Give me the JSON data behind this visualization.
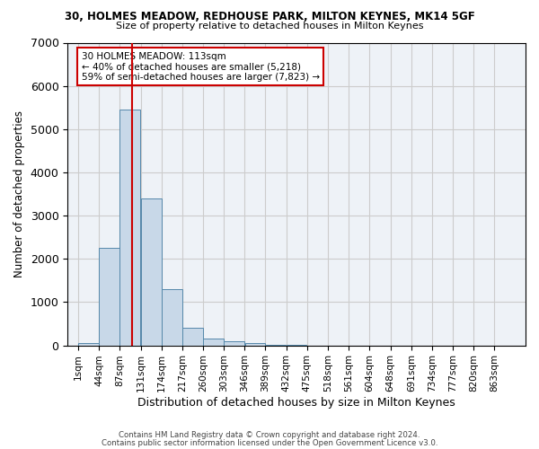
{
  "title1": "30, HOLMES MEADOW, REDHOUSE PARK, MILTON KEYNES, MK14 5GF",
  "title2": "Size of property relative to detached houses in Milton Keynes",
  "xlabel": "Distribution of detached houses by size in Milton Keynes",
  "ylabel": "Number of detached properties",
  "footer1": "Contains HM Land Registry data © Crown copyright and database right 2024.",
  "footer2": "Contains public sector information licensed under the Open Government Licence v3.0.",
  "annotation_title": "30 HOLMES MEADOW: 113sqm",
  "annotation_line1": "← 40% of detached houses are smaller (5,218)",
  "annotation_line2": "59% of semi-detached houses are larger (7,823) →",
  "property_size_sqm": 113,
  "bar_color": "#c8d8e8",
  "bar_edge_color": "#5588aa",
  "vline_color": "#cc0000",
  "annotation_box_color": "#cc0000",
  "grid_color": "#cccccc",
  "background_color": "#eef2f7",
  "categories": [
    "1sqm",
    "44sqm",
    "87sqm",
    "131sqm",
    "174sqm",
    "217sqm",
    "260sqm",
    "303sqm",
    "346sqm",
    "389sqm",
    "432sqm",
    "475sqm",
    "518sqm",
    "561sqm",
    "604sqm",
    "648sqm",
    "691sqm",
    "734sqm",
    "777sqm",
    "820sqm",
    "863sqm"
  ],
  "bin_starts": [
    1,
    44,
    87,
    131,
    174,
    217,
    260,
    303,
    346,
    389,
    432,
    475,
    518,
    561,
    604,
    648,
    691,
    734,
    777,
    820,
    863
  ],
  "bin_width": 43,
  "values": [
    50,
    2250,
    5450,
    3400,
    1300,
    400,
    150,
    100,
    50,
    20,
    5,
    2,
    2,
    0,
    0,
    0,
    0,
    0,
    0,
    0,
    0
  ],
  "ylim": [
    0,
    7000
  ],
  "yticks": [
    0,
    1000,
    2000,
    3000,
    4000,
    5000,
    6000,
    7000
  ]
}
